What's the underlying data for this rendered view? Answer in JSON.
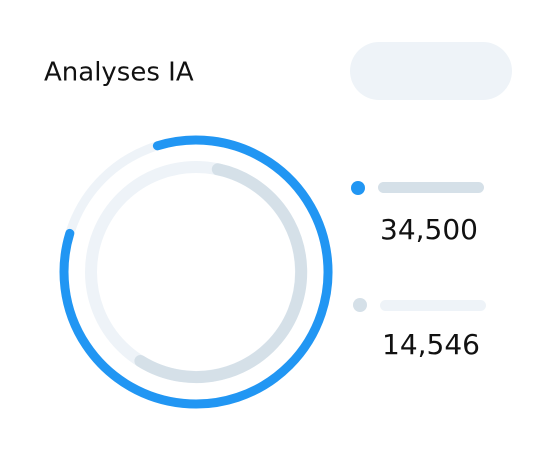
{
  "header": {
    "title": "Analyses IA"
  },
  "legend": {
    "items": [
      {
        "value": "34,500"
      },
      {
        "value": "14,546"
      }
    ]
  }
}
